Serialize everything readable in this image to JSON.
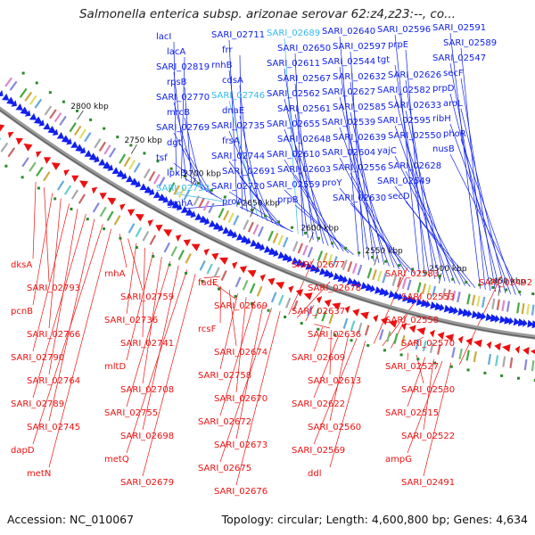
{
  "title": "Salmonella enterica subsp. arizonae serovar 62:z4,z23:--, co...",
  "footer": {
    "accession": "Accession: NC_010067",
    "stats": "Topology: circular; Length: 4,600,800 bp; Genes: 4,634"
  },
  "colors": {
    "forward": "#1020ee",
    "reverse": "#ee1010",
    "highlight": "#33bbee",
    "backbone": "#888888",
    "tick_dot": "#2a8a2a"
  },
  "ticks": [
    "2800 kbp",
    "2750 kbp",
    "2700 kbp",
    "2650 kbp",
    "2600 kbp",
    "2550 kbp",
    "2500 kbp",
    "2450 kbp"
  ],
  "forward_labels": [
    "lacI",
    "lacA",
    "SARI_02819",
    "rpsB",
    "SARI_02770",
    "mrcB",
    "SARI_02769",
    "dgt",
    "tsf",
    "lpxB",
    "SARI_02752",
    "gmhA",
    "SARI_02711",
    "frr",
    "rnhB",
    "cdsA",
    "SARI_02746",
    "dnaE",
    "SARI_02735",
    "frsA",
    "SARI_02744",
    "SARI_02691",
    "SARI_02720",
    "proA",
    "SARI_02689",
    "SARI_02650",
    "SARI_02611",
    "SARI_02567",
    "SARI_02562",
    "SARI_02561",
    "SARI_02655",
    "SARI_02648",
    "SARI_02610",
    "SARI_02603",
    "SARI_02559",
    "prpB",
    "SARI_02640",
    "SARI_02597",
    "SARI_02544",
    "SARI_02632",
    "SARI_02627",
    "SARI_02585",
    "SARI_02539",
    "SARI_02639",
    "SARI_02604",
    "SARI_02556",
    "proY",
    "SARI_02630",
    "SARI_02596",
    "prpE",
    "tgt",
    "SARI_02626",
    "SARI_02582",
    "SARI_02633",
    "SARI_02595",
    "SARI_02550",
    "yajC",
    "SARI_02628",
    "SARI_02549",
    "secD",
    "SARI_02591",
    "SARI_02589",
    "SARI_02547",
    "secF",
    "prpD",
    "aroL",
    "ribH",
    "phoR",
    "nusB"
  ],
  "reverse_labels": [
    "dksA",
    "SARI_02793",
    "pcnB",
    "SARI_02766",
    "SARI_02790",
    "SARI_02764",
    "SARI_02789",
    "SARI_02745",
    "dapD",
    "metN",
    "rnhA",
    "SARI_02759",
    "SARI_02736",
    "SARI_02741",
    "mltD",
    "SARI_02708",
    "SARI_02755",
    "SARI_02698",
    "metQ",
    "SARI_02679",
    "fadE",
    "SARI_02669",
    "rcsF",
    "SARI_02674",
    "SARI_02758",
    "SARI_02670",
    "SARI_02672",
    "SARI_02673",
    "SARI_02675",
    "SARI_02676",
    "SARI_02677",
    "SARI_02678",
    "SARI_02637",
    "SARI_02636",
    "SARI_02609",
    "SARI_02613",
    "SARI_02622",
    "SARI_02560",
    "SARI_02569",
    "ddl",
    "SARI_02583",
    "SARI_02553",
    "SARI_02558",
    "SARI_02570",
    "SARI_02527",
    "SARI_02530",
    "SARI_02515",
    "SARI_02522",
    "ampG",
    "SARI_02491",
    "SARI_02492"
  ]
}
